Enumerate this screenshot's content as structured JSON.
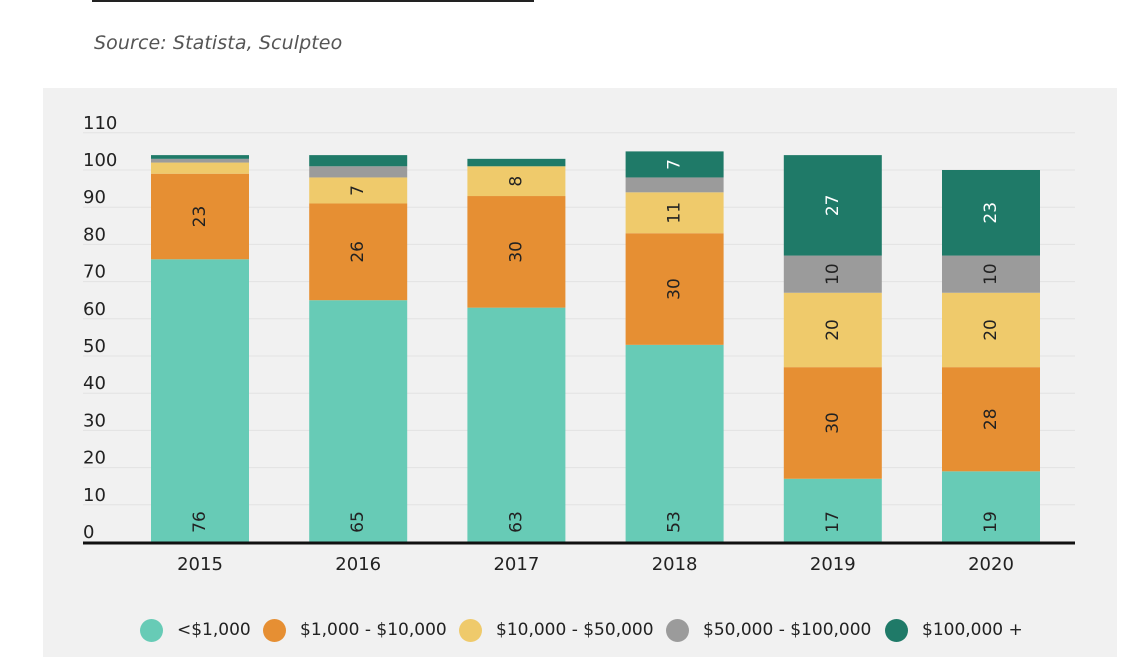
{
  "source_text": "Source: Statista, Sculpteo",
  "colors": {
    "panel_bg": "#f1f1f1",
    "grid": "#e2e2e2",
    "axis": "#111111",
    "series": [
      "#67cbb6",
      "#e68f33",
      "#efca6b",
      "#9b9b9b",
      "#1f7a68"
    ]
  },
  "chart_data": {
    "type": "bar",
    "stacked": true,
    "title": "",
    "xlabel": "",
    "ylabel": "",
    "ylim": [
      0,
      110
    ],
    "yticks": [
      "0",
      "10",
      "20",
      "30",
      "40",
      "50",
      "60",
      "70",
      "80",
      "90",
      "100",
      "110"
    ],
    "grid": true,
    "legend_position": "bottom",
    "categories": [
      "2015",
      "2016",
      "2017",
      "2018",
      "2019",
      "2020"
    ],
    "series": [
      {
        "name": "<$1,000",
        "values": [
          76,
          65,
          63,
          53,
          17,
          19
        ],
        "labels": [
          "76",
          "65",
          "63",
          "53",
          "17",
          "19"
        ]
      },
      {
        "name": "$1,000 - $10,000",
        "values": [
          23,
          26,
          30,
          30,
          30,
          28
        ],
        "labels": [
          "23",
          "26",
          "30",
          "30",
          "30",
          "28"
        ]
      },
      {
        "name": "$10,000 - $50,000",
        "values": [
          3,
          7,
          8,
          11,
          20,
          20
        ],
        "labels": [
          "",
          "7",
          "8",
          "11",
          "20",
          "20"
        ]
      },
      {
        "name": "$50,000 - $100,000",
        "values": [
          1,
          3,
          0,
          4,
          10,
          10
        ],
        "labels": [
          "",
          "",
          "",
          "",
          "10",
          "10"
        ]
      },
      {
        "name": "$100,000 +",
        "values": [
          1,
          3,
          2,
          7,
          27,
          23
        ],
        "labels": [
          "",
          "",
          "",
          "7",
          "27",
          "23"
        ]
      }
    ]
  }
}
